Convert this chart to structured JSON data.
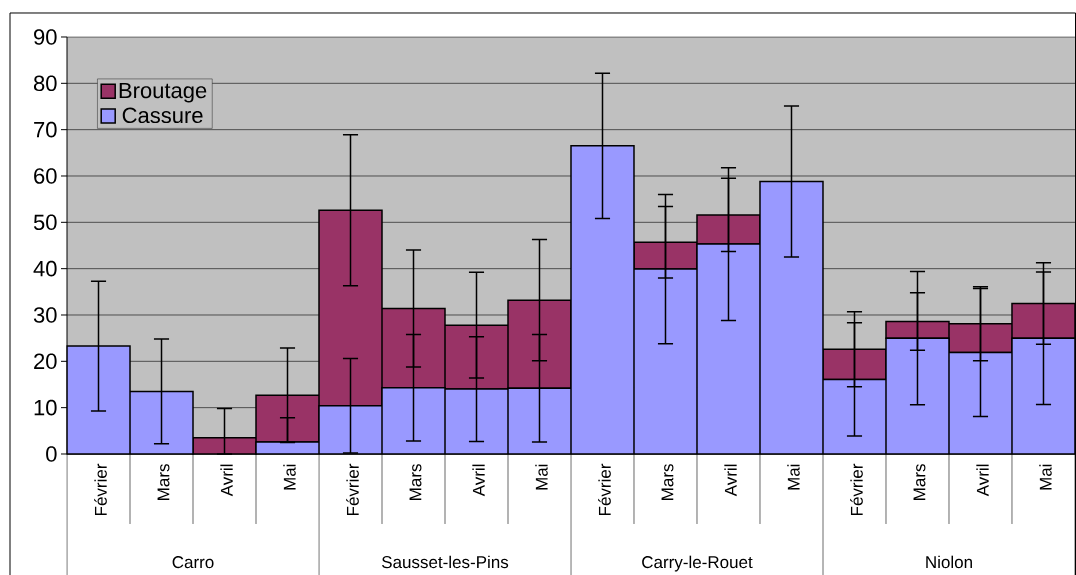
{
  "chart_data": {
    "type": "bar",
    "stacked": true,
    "categories": [
      "Février",
      "Mars",
      "Avril",
      "Mai",
      "Février",
      "Mars",
      "Avril",
      "Mai",
      "Février",
      "Mars",
      "Avril",
      "Mai",
      "Février",
      "Mars",
      "Avril",
      "Mai"
    ],
    "annotations": [
      "Carro",
      "Sausset-les-Pins",
      "Carry-le-Rouet",
      "Niolon"
    ],
    "series": [
      {
        "name": "Cassure",
        "color": "#9999ff",
        "values": [
          23.3,
          13.5,
          0,
          2.6,
          10.4,
          14.3,
          14.0,
          14.2,
          66.5,
          39.9,
          45.3,
          58.8,
          16.1,
          25.0,
          21.9,
          25.0
        ],
        "errors": [
          14.0,
          11.3,
          null,
          [
            2.6,
            7.8
          ],
          10.2,
          11.5,
          11.3,
          11.6,
          15.7,
          16.1,
          16.5,
          16.3,
          12.2,
          14.4,
          13.8,
          14.3
        ]
      },
      {
        "name": "Broutage",
        "color": "#993366",
        "values": [
          0,
          0,
          3.5,
          10.1,
          42.2,
          17.1,
          13.8,
          19.0,
          0,
          5.8,
          6.3,
          0,
          6.5,
          3.6,
          6.2,
          7.5
        ],
        "errors": [
          null,
          null,
          [
            0,
            9.8
          ],
          10.2,
          16.3,
          12.6,
          11.4,
          13.1,
          null,
          7.7,
          7.9,
          null,
          8.1,
          6.2,
          8.0,
          8.8
        ]
      }
    ],
    "ylim": [
      0,
      90
    ],
    "yticks": [
      0,
      10,
      20,
      30,
      40,
      50,
      60,
      70,
      80,
      90
    ],
    "grid": "y",
    "legend": "top left"
  }
}
